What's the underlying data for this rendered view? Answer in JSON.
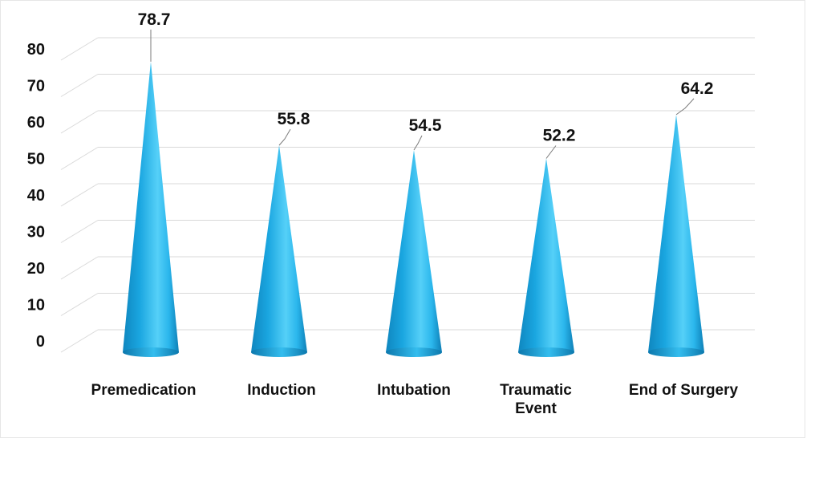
{
  "chart_data": {
    "type": "bar",
    "categories": [
      "Premedication",
      "Induction",
      "Intubation",
      "Traumatic Event",
      "End of Surgery"
    ],
    "values": [
      78.7,
      55.8,
      54.5,
      52.2,
      64.2
    ],
    "title": "",
    "xlabel": "",
    "ylabel": "",
    "ylim": [
      0,
      80
    ],
    "yticks": [
      0,
      10,
      20,
      30,
      40,
      50,
      60,
      70,
      80
    ],
    "grid": true,
    "bar_shape": "cone",
    "bar_color": "#1aa6e0"
  }
}
